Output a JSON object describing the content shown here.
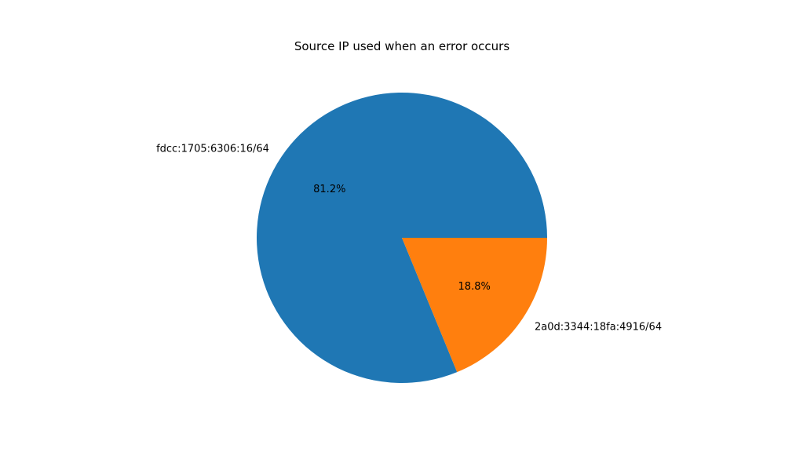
{
  "chart_data": {
    "type": "pie",
    "title": "Source IP used when an error occurs",
    "labels": [
      "fdcc:1705:6306:16/64",
      "2a0d:3344:18fa:4916/64"
    ],
    "values": [
      81.2,
      18.8
    ],
    "percent_labels": [
      "81.2%",
      "18.8%"
    ],
    "colors": [
      "#1f77b4",
      "#ff7f0e"
    ],
    "start_angle_deg": 0,
    "direction": "counterclockwise"
  }
}
